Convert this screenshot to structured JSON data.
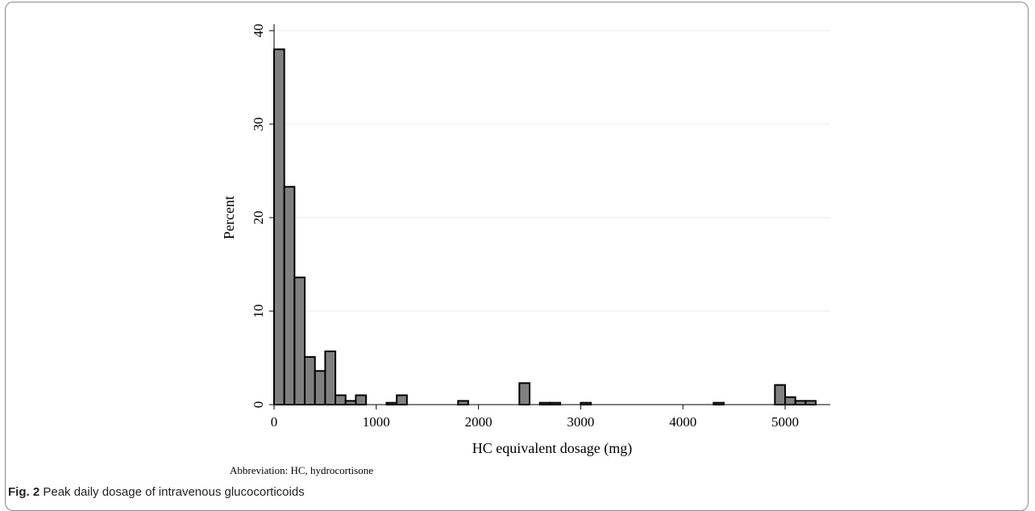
{
  "chart_data": {
    "type": "bar",
    "subtype": "histogram",
    "xlabel": "HC equivalent dosage (mg)",
    "ylabel": "Percent",
    "xlim": [
      0,
      5400
    ],
    "ylim": [
      0,
      40
    ],
    "xticks": [
      0,
      1000,
      2000,
      3000,
      4000,
      5000
    ],
    "yticks": [
      0,
      10,
      20,
      30,
      40
    ],
    "grid": "horizontal",
    "bar_fill": "#808080",
    "bar_stroke": "#000000",
    "bins": [
      {
        "x0": 0,
        "x1": 100,
        "value": 38.0
      },
      {
        "x0": 100,
        "x1": 200,
        "value": 23.3
      },
      {
        "x0": 200,
        "x1": 300,
        "value": 13.6
      },
      {
        "x0": 300,
        "x1": 400,
        "value": 5.1
      },
      {
        "x0": 400,
        "x1": 500,
        "value": 3.6
      },
      {
        "x0": 500,
        "x1": 600,
        "value": 5.7
      },
      {
        "x0": 600,
        "x1": 700,
        "value": 1.0
      },
      {
        "x0": 700,
        "x1": 800,
        "value": 0.4
      },
      {
        "x0": 800,
        "x1": 900,
        "value": 1.0
      },
      {
        "x0": 1100,
        "x1": 1200,
        "value": 0.2
      },
      {
        "x0": 1200,
        "x1": 1300,
        "value": 1.0
      },
      {
        "x0": 1800,
        "x1": 1900,
        "value": 0.4
      },
      {
        "x0": 2400,
        "x1": 2500,
        "value": 2.3
      },
      {
        "x0": 2600,
        "x1": 2700,
        "value": 0.2
      },
      {
        "x0": 2700,
        "x1": 2800,
        "value": 0.2
      },
      {
        "x0": 3000,
        "x1": 3100,
        "value": 0.2
      },
      {
        "x0": 4300,
        "x1": 4400,
        "value": 0.2
      },
      {
        "x0": 4900,
        "x1": 5000,
        "value": 2.1
      },
      {
        "x0": 5000,
        "x1": 5100,
        "value": 0.8
      },
      {
        "x0": 5100,
        "x1": 5200,
        "value": 0.4
      },
      {
        "x0": 5200,
        "x1": 5300,
        "value": 0.4
      }
    ]
  },
  "annotation": "Abbreviation: HC, hydrocortisone",
  "caption": {
    "lead": "Fig. 2",
    "text": "Peak daily dosage of intravenous glucocorticoids"
  }
}
